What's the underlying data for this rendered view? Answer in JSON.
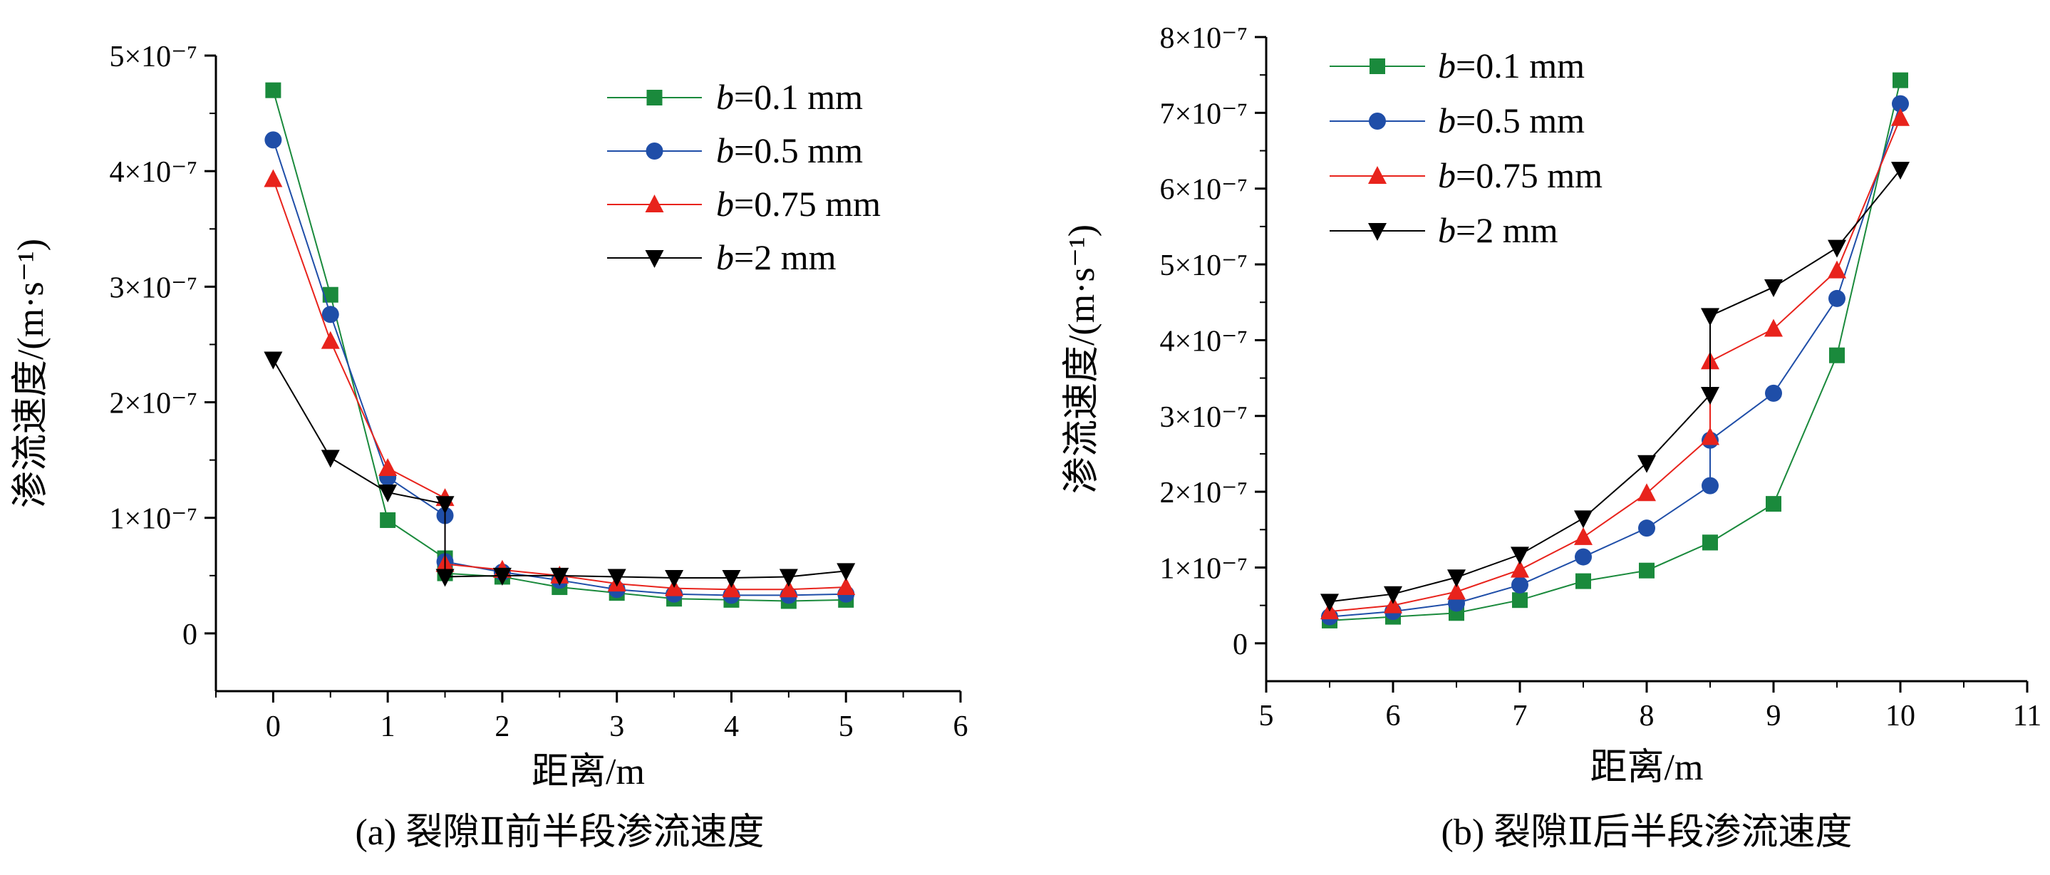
{
  "chart_data": [
    {
      "type": "line",
      "caption": "(a) 裂隙Ⅱ前半段渗流速度",
      "xlabel": "距离/m",
      "ylabel": "渗流速度/(m·s⁻¹)",
      "xlim": [
        -0.5,
        6
      ],
      "ylim": [
        -5e-08,
        5e-07
      ],
      "xticks": [
        "0",
        "1",
        "2",
        "3",
        "4",
        "5",
        "6"
      ],
      "yticks": [
        "0",
        "1×10⁻⁷",
        "2×10⁻⁷",
        "3×10⁻⁷",
        "4×10⁻⁷",
        "5×10⁻⁷"
      ],
      "legend_position": "top-right",
      "x": [
        0,
        0.5,
        1,
        1.5,
        1.5,
        2,
        2.5,
        3,
        3.5,
        4,
        4.5,
        5
      ],
      "series": [
        {
          "name": "b=0.1 mm",
          "b_label": "b",
          "rest_label": "=0.1 mm",
          "color": "#1a8a3c",
          "marker": "square",
          "values": [
            4.7e-07,
            2.93e-07,
            9.8e-08,
            6.5e-08,
            5.2e-08,
            4.9e-08,
            4e-08,
            3.5e-08,
            3e-08,
            2.9e-08,
            2.8e-08,
            2.9e-08
          ]
        },
        {
          "name": "b=0.5 mm",
          "b_label": "b",
          "rest_label": "=0.5 mm",
          "color": "#1f4ea8",
          "marker": "circle",
          "values": [
            4.27e-07,
            2.76e-07,
            1.35e-07,
            1.02e-07,
            6.2e-08,
            5.3e-08,
            4.6e-08,
            3.8e-08,
            3.4e-08,
            3.3e-08,
            3.3e-08,
            3.4e-08
          ]
        },
        {
          "name": "b=0.75 mm",
          "b_label": "b",
          "rest_label": "=0.75 mm",
          "color": "#e8231c",
          "marker": "triangle-up",
          "values": [
            3.93e-07,
            2.53e-07,
            1.43e-07,
            1.17e-07,
            6e-08,
            5.5e-08,
            5e-08,
            4.3e-08,
            3.9e-08,
            3.8e-08,
            3.8e-08,
            4e-08
          ]
        },
        {
          "name": "b=2 mm",
          "b_label": "b",
          "rest_label": "=2 mm",
          "color": "#000000",
          "marker": "triangle-down",
          "values": [
            2.37e-07,
            1.52e-07,
            1.22e-07,
            1.12e-07,
            4.9e-08,
            5e-08,
            5e-08,
            4.9e-08,
            4.8e-08,
            4.8e-08,
            4.9e-08,
            5.4e-08
          ]
        }
      ]
    },
    {
      "type": "line",
      "caption": "(b) 裂隙Ⅱ后半段渗流速度",
      "xlabel": "距离/m",
      "ylabel": "渗流速度/(m·s⁻¹)",
      "xlim": [
        5,
        11
      ],
      "ylim": [
        -5e-08,
        8e-07
      ],
      "xticks": [
        "5",
        "6",
        "7",
        "8",
        "9",
        "10",
        "11"
      ],
      "yticks": [
        "0",
        "1×10⁻⁷",
        "2×10⁻⁷",
        "3×10⁻⁷",
        "4×10⁻⁷",
        "5×10⁻⁷",
        "6×10⁻⁷",
        "7×10⁻⁷",
        "8×10⁻⁷"
      ],
      "legend_position": "top-left",
      "x": [
        5.5,
        6,
        6.5,
        7,
        7.5,
        8,
        8.5,
        8.5,
        9,
        9.5,
        10
      ],
      "series": [
        {
          "name": "b=0.1 mm",
          "b_label": "b",
          "rest_label": "=0.1 mm",
          "color": "#1a8a3c",
          "marker": "square",
          "values": [
            3e-08,
            3.5e-08,
            4e-08,
            5.7e-08,
            8.2e-08,
            9.6e-08,
            1.33e-07,
            1.33e-07,
            1.84e-07,
            3.8e-07,
            7.43e-07
          ]
        },
        {
          "name": "b=0.5 mm",
          "b_label": "b",
          "rest_label": "=0.5 mm",
          "color": "#1f4ea8",
          "marker": "circle",
          "values": [
            3.5e-08,
            4.2e-08,
            5.3e-08,
            7.7e-08,
            1.14e-07,
            1.52e-07,
            2.08e-07,
            2.68e-07,
            3.3e-07,
            4.55e-07,
            7.12e-07
          ]
        },
        {
          "name": "b=0.75 mm",
          "b_label": "b",
          "rest_label": "=0.75 mm",
          "color": "#e8231c",
          "marker": "triangle-up",
          "values": [
            4.2e-08,
            5e-08,
            6.8e-08,
            9.7e-08,
            1.4e-07,
            1.98e-07,
            2.72e-07,
            3.72e-07,
            4.15e-07,
            4.92e-07,
            6.93e-07
          ]
        },
        {
          "name": "b=2 mm",
          "b_label": "b",
          "rest_label": "=2 mm",
          "color": "#000000",
          "marker": "triangle-down",
          "values": [
            5.5e-08,
            6.5e-08,
            8.7e-08,
            1.17e-07,
            1.65e-07,
            2.38e-07,
            3.28e-07,
            4.32e-07,
            4.7e-07,
            5.22e-07,
            6.25e-07
          ]
        }
      ]
    }
  ]
}
